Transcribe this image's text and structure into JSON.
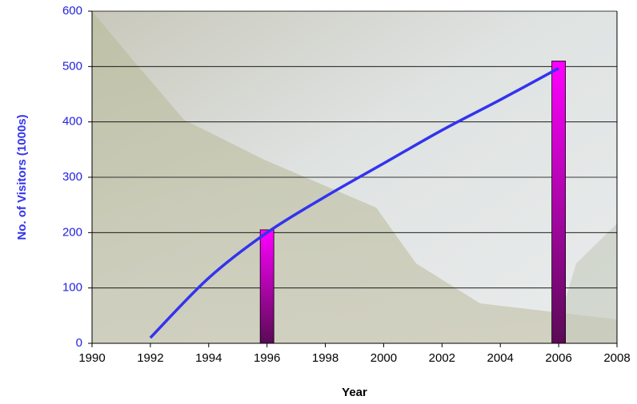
{
  "chart_data": {
    "type": "combo",
    "xlabel": "Year",
    "ylabel": "No. of Visitors (1000s)",
    "xlim": [
      1990,
      2008
    ],
    "xticks": [
      1990,
      1992,
      1994,
      1996,
      1998,
      2000,
      2002,
      2004,
      2006,
      2008
    ],
    "ylim": [
      0,
      600
    ],
    "yticks": [
      0,
      100,
      200,
      300,
      400,
      500,
      600
    ],
    "grid": true,
    "series": [
      {
        "type": "bar",
        "color": "#ff00ff",
        "x": [
          1996,
          2006
        ],
        "values": [
          205,
          510
        ]
      },
      {
        "type": "line",
        "color": "#3333ee",
        "x": [
          1992,
          1994,
          1996,
          1998,
          2000,
          2002,
          2004,
          2006
        ],
        "values": [
          10,
          118,
          200,
          265,
          325,
          385,
          440,
          497
        ]
      }
    ]
  }
}
